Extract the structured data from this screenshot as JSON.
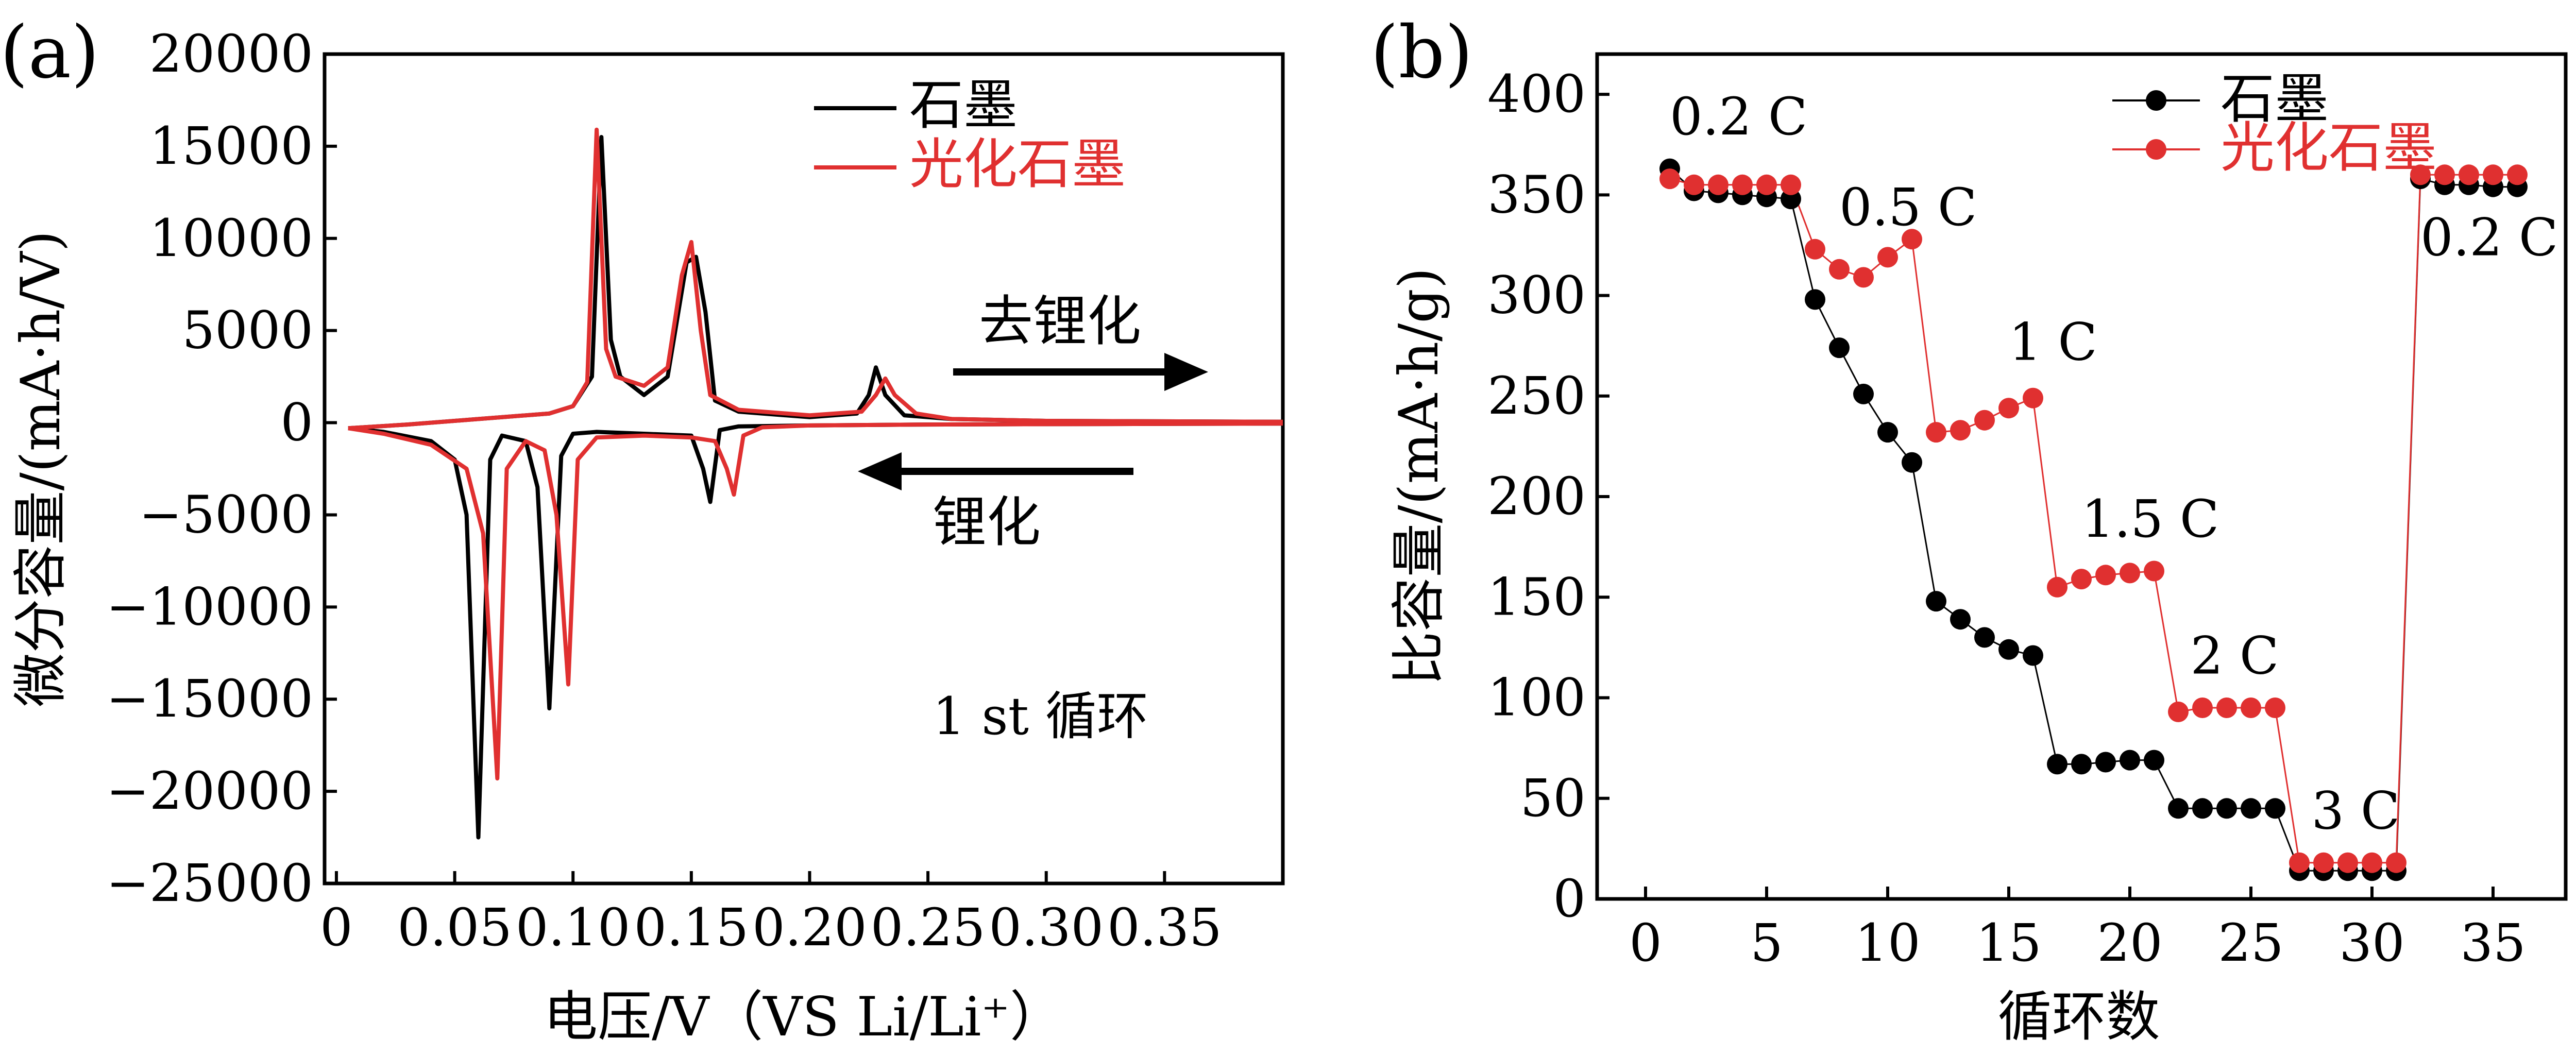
{
  "panels": [
    {
      "label": "(a)",
      "chart_data": {
        "type": "line",
        "title": "",
        "xlabel": "电压/V（VS Li/Li⁺）",
        "ylabel": "微分容量/(mA·h/V)",
        "xlim": [
          -0.005,
          0.4
        ],
        "ylim": [
          -25000,
          20000
        ],
        "xticks": [
          0,
          0.05,
          0.1,
          0.15,
          0.2,
          0.25,
          0.3,
          0.35
        ],
        "xtick_labels": [
          "0",
          "0.05",
          "0.10",
          "0.15",
          "0.20",
          "0.25",
          "0.30",
          "0.35"
        ],
        "yticks": [
          20000,
          15000,
          10000,
          5000,
          0,
          -5000,
          -10000,
          -15000,
          -20000,
          -25000
        ],
        "ytick_labels": [
          "20000",
          "15000",
          "10000",
          "5000",
          "0",
          "−5000",
          "−10000",
          "−15000",
          "−20000",
          "−25000"
        ],
        "grid": false,
        "legend_position": "top-right",
        "annotations": {
          "delithiation": "去锂化",
          "lithiation": "锂化",
          "cycle": "1 st 循环"
        },
        "series": [
          {
            "name": "石墨",
            "color": "#000000",
            "branches": [
              {
                "x": [
                  0.005,
                  0.02,
                  0.04,
                  0.05,
                  0.055,
                  0.06,
                  0.065,
                  0.07,
                  0.08,
                  0.085,
                  0.09,
                  0.095,
                  0.1,
                  0.11,
                  0.13,
                  0.15,
                  0.155,
                  0.158,
                  0.162,
                  0.17,
                  0.2,
                  0.25,
                  0.3,
                  0.4
                ],
                "y": [
                  -300,
                  -500,
                  -1000,
                  -2000,
                  -5000,
                  -22500,
                  -2000,
                  -700,
                  -1000,
                  -3500,
                  -15500,
                  -1800,
                  -600,
                  -500,
                  -600,
                  -700,
                  -2500,
                  -4300,
                  -400,
                  -200,
                  -150,
                  -100,
                  -80,
                  -50
                ]
              },
              {
                "x": [
                  0.005,
                  0.03,
                  0.06,
                  0.09,
                  0.1,
                  0.108,
                  0.112,
                  0.116,
                  0.12,
                  0.13,
                  0.14,
                  0.148,
                  0.152,
                  0.156,
                  0.16,
                  0.17,
                  0.2,
                  0.22,
                  0.225,
                  0.228,
                  0.232,
                  0.24,
                  0.26,
                  0.3,
                  0.4
                ],
                "y": [
                  -300,
                  -100,
                  200,
                  500,
                  900,
                  2500,
                  15500,
                  4500,
                  2500,
                  1500,
                  2500,
                  8700,
                  9000,
                  6000,
                  1200,
                  600,
                  300,
                  500,
                  1500,
                  3000,
                  1500,
                  400,
                  200,
                  100,
                  50
                ]
              }
            ]
          },
          {
            "name": "光化石墨",
            "color": "#e03030",
            "branches": [
              {
                "x": [
                  0.005,
                  0.02,
                  0.04,
                  0.055,
                  0.062,
                  0.068,
                  0.072,
                  0.08,
                  0.088,
                  0.093,
                  0.098,
                  0.102,
                  0.11,
                  0.13,
                  0.15,
                  0.16,
                  0.165,
                  0.168,
                  0.172,
                  0.18,
                  0.2,
                  0.25,
                  0.3,
                  0.4
                ],
                "y": [
                  -300,
                  -600,
                  -1200,
                  -2500,
                  -6000,
                  -19300,
                  -2500,
                  -1000,
                  -1500,
                  -5000,
                  -14200,
                  -2000,
                  -800,
                  -700,
                  -800,
                  -1000,
                  -2500,
                  -3900,
                  -700,
                  -250,
                  -150,
                  -100,
                  -80,
                  -50
                ]
              },
              {
                "x": [
                  0.005,
                  0.03,
                  0.06,
                  0.09,
                  0.1,
                  0.106,
                  0.11,
                  0.114,
                  0.118,
                  0.13,
                  0.14,
                  0.146,
                  0.15,
                  0.154,
                  0.158,
                  0.17,
                  0.2,
                  0.222,
                  0.228,
                  0.232,
                  0.236,
                  0.245,
                  0.26,
                  0.3,
                  0.4
                ],
                "y": [
                  -300,
                  -100,
                  200,
                  500,
                  900,
                  2200,
                  15900,
                  4000,
                  2500,
                  2000,
                  3000,
                  8000,
                  9800,
                  5000,
                  1500,
                  700,
                  400,
                  600,
                  1500,
                  2400,
                  1500,
                  500,
                  200,
                  100,
                  50
                ]
              }
            ]
          }
        ]
      }
    },
    {
      "label": "(b)",
      "chart_data": {
        "type": "scatter",
        "title": "",
        "xlabel": "循环数",
        "ylabel": "比容量/(mA·h/g)",
        "xlim": [
          -2,
          38
        ],
        "ylim": [
          0,
          420
        ],
        "xticks": [
          0,
          5,
          10,
          15,
          20,
          25,
          30,
          35
        ],
        "xtick_labels": [
          "0",
          "5",
          "10",
          "15",
          "20",
          "25",
          "30",
          "35"
        ],
        "yticks": [
          0,
          50,
          100,
          150,
          200,
          250,
          300,
          350,
          400
        ],
        "ytick_labels": [
          "0",
          "50",
          "100",
          "150",
          "200",
          "250",
          "300",
          "350",
          "400"
        ],
        "grid": false,
        "legend_position": "top-right",
        "x": [
          1,
          2,
          3,
          4,
          5,
          6,
          7,
          8,
          9,
          10,
          11,
          12,
          13,
          14,
          15,
          16,
          17,
          18,
          19,
          20,
          21,
          22,
          23,
          24,
          25,
          26,
          27,
          28,
          29,
          30,
          31,
          32,
          33,
          34,
          35,
          36
        ],
        "rate_labels": [
          {
            "text": "0.2 C",
            "x": 1,
            "y": 380
          },
          {
            "text": "0.5 C",
            "x": 8,
            "y": 335
          },
          {
            "text": "1 C",
            "x": 15,
            "y": 268
          },
          {
            "text": "1.5 C",
            "x": 18,
            "y": 180
          },
          {
            "text": "2 C",
            "x": 22.5,
            "y": 112
          },
          {
            "text": "3 C",
            "x": 27.5,
            "y": 35
          },
          {
            "text": "0.2 C",
            "x": 32,
            "y": 320
          }
        ],
        "series": [
          {
            "name": "石墨",
            "color": "#000000",
            "values": [
              363,
              352,
              351,
              350,
              349,
              348,
              298,
              274,
              251,
              232,
              217,
              148,
              139,
              130,
              124,
              121,
              67,
              67,
              68,
              69,
              69,
              45,
              45,
              45,
              45,
              45,
              14,
              14,
              14,
              14,
              14,
              358,
              355,
              355,
              354,
              354
            ]
          },
          {
            "name": "光化石墨",
            "color": "#e03030",
            "values": [
              358,
              355,
              355,
              355,
              355,
              355,
              323,
              313,
              309,
              319,
              328,
              232,
              233,
              238,
              244,
              249,
              155,
              159,
              161,
              162,
              163,
              93,
              95,
              95,
              95,
              95,
              18,
              18,
              18,
              18,
              18,
              360,
              360,
              360,
              360,
              360
            ]
          }
        ]
      }
    }
  ]
}
